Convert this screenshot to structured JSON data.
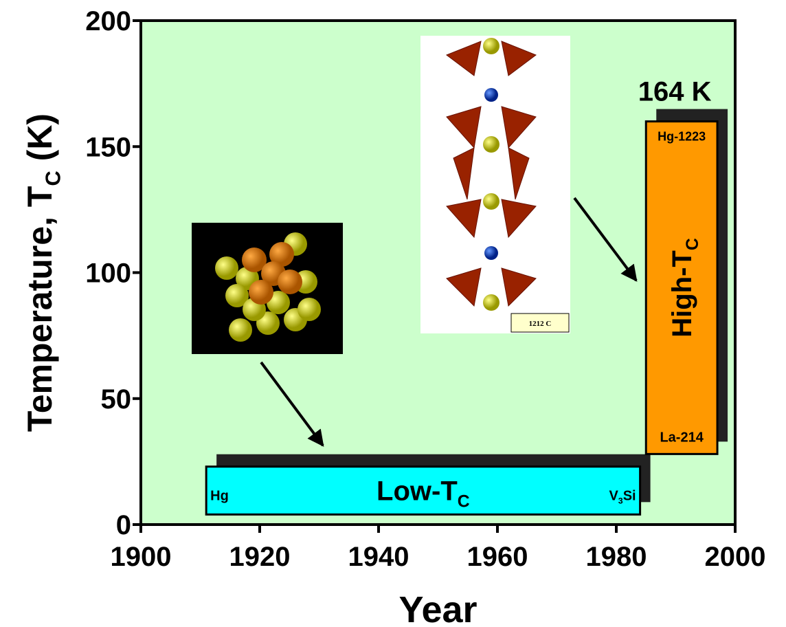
{
  "chart_data": {
    "type": "range-bar",
    "x_label": "Year",
    "y_label": [
      "Temperature, T",
      "C",
      " (K)"
    ],
    "xlim": [
      1900,
      2000
    ],
    "xticks": [
      1900,
      1920,
      1940,
      1960,
      1980,
      2000
    ],
    "ylim": [
      0,
      200
    ],
    "yticks": [
      0,
      50,
      100,
      150,
      200
    ],
    "background": "#ccffcc",
    "bars": [
      {
        "label": [
          "Low-T",
          "C"
        ],
        "x": [
          1911,
          1984
        ],
        "y": [
          4,
          23
        ],
        "color": "#00ffff",
        "start_label": [
          "Hg"
        ],
        "end_label": [
          "V",
          "3",
          "Si"
        ]
      },
      {
        "label": [
          "High-T",
          "C"
        ],
        "x": [
          1985,
          1997
        ],
        "y": [
          28,
          160
        ],
        "color": "#ff9900",
        "start_label": [
          "La-214"
        ],
        "end_label": [
          "Hg-1223"
        ]
      }
    ],
    "annotation": "164 K",
    "inset_label": "1212 C"
  }
}
